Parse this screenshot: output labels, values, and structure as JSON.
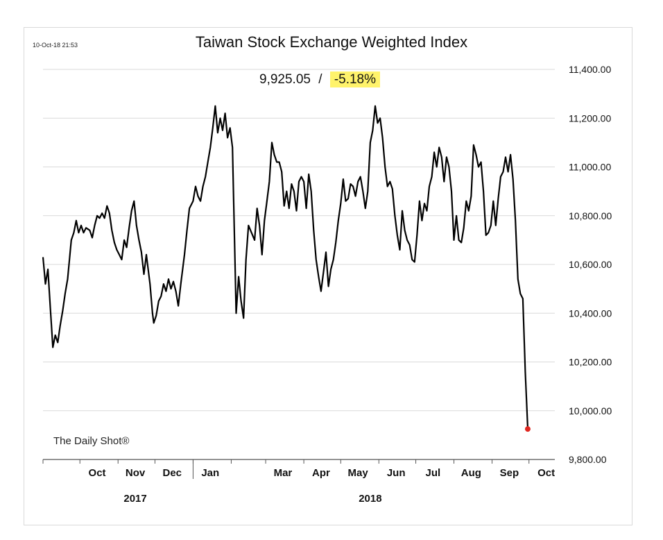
{
  "header": {
    "timestamp": "10-Oct-18 21:53",
    "title": "Taiwan Stock Exchange Weighted Index",
    "last_value": "9,925.05",
    "separator": "/",
    "change": "-5.18%",
    "highlight_color": "#fff36b"
  },
  "credit": "The Daily Shot®",
  "chart_data": {
    "type": "line",
    "title": "Taiwan Stock Exchange Weighted Index",
    "xlabel": "",
    "ylabel": "",
    "ylim": [
      9800,
      11400
    ],
    "grid": "horizontal",
    "line_color": "#000000",
    "last_point_color": "#e0261f",
    "y_ticks": [
      "11,400.00",
      "11,200.00",
      "11,000.00",
      "10,800.00",
      "10,600.00",
      "10,400.00",
      "10,200.00",
      "10,000.00",
      "9,800.00"
    ],
    "y_tick_values": [
      11400,
      11200,
      11000,
      10800,
      10600,
      10400,
      10200,
      10000,
      9800
    ],
    "x_ticks": [
      "Oct",
      "Nov",
      "Dec",
      "Jan",
      "Mar",
      "Apr",
      "May",
      "Jun",
      "Jul",
      "Aug",
      "Sep",
      "Oct"
    ],
    "x_tick_dates": [
      "2017-10-15",
      "2017-11-15",
      "2017-12-15",
      "2018-01-15",
      "2018-03-15",
      "2018-04-15",
      "2018-05-15",
      "2018-06-15",
      "2018-07-15",
      "2018-08-15",
      "2018-09-15",
      "2018-10-15"
    ],
    "years": [
      {
        "label": "2017",
        "center_date": "2017-11-15"
      },
      {
        "label": "2018",
        "center_date": "2018-05-25"
      }
    ],
    "year_divider_date": "2018-01-01",
    "x_domain": [
      "2017-09-01",
      "2018-10-22"
    ],
    "series": [
      {
        "points": [
          [
            "2017-09-01",
            10630
          ],
          [
            "2017-09-03",
            10520
          ],
          [
            "2017-09-05",
            10580
          ],
          [
            "2017-09-07",
            10420
          ],
          [
            "2017-09-09",
            10260
          ],
          [
            "2017-09-11",
            10310
          ],
          [
            "2017-09-13",
            10280
          ],
          [
            "2017-09-15",
            10350
          ],
          [
            "2017-09-17",
            10410
          ],
          [
            "2017-09-19",
            10480
          ],
          [
            "2017-09-21",
            10540
          ],
          [
            "2017-09-24",
            10700
          ],
          [
            "2017-09-26",
            10730
          ],
          [
            "2017-09-28",
            10780
          ],
          [
            "2017-09-30",
            10730
          ],
          [
            "2017-10-02",
            10760
          ],
          [
            "2017-10-04",
            10730
          ],
          [
            "2017-10-06",
            10750
          ],
          [
            "2017-10-09",
            10740
          ],
          [
            "2017-10-11",
            10710
          ],
          [
            "2017-10-13",
            10760
          ],
          [
            "2017-10-15",
            10800
          ],
          [
            "2017-10-17",
            10790
          ],
          [
            "2017-10-19",
            10810
          ],
          [
            "2017-10-21",
            10790
          ],
          [
            "2017-10-23",
            10840
          ],
          [
            "2017-10-25",
            10810
          ],
          [
            "2017-10-27",
            10740
          ],
          [
            "2017-10-29",
            10690
          ],
          [
            "2017-10-31",
            10660
          ],
          [
            "2017-11-02",
            10640
          ],
          [
            "2017-11-04",
            10620
          ],
          [
            "2017-11-06",
            10700
          ],
          [
            "2017-11-08",
            10670
          ],
          [
            "2017-11-10",
            10750
          ],
          [
            "2017-11-12",
            10820
          ],
          [
            "2017-11-14",
            10860
          ],
          [
            "2017-11-16",
            10760
          ],
          [
            "2017-11-18",
            10700
          ],
          [
            "2017-11-20",
            10650
          ],
          [
            "2017-11-22",
            10560
          ],
          [
            "2017-11-24",
            10640
          ],
          [
            "2017-11-27",
            10520
          ],
          [
            "2017-11-29",
            10400
          ],
          [
            "2017-11-30",
            10360
          ],
          [
            "2017-12-02",
            10390
          ],
          [
            "2017-12-04",
            10450
          ],
          [
            "2017-12-06",
            10470
          ],
          [
            "2017-12-08",
            10520
          ],
          [
            "2017-12-10",
            10490
          ],
          [
            "2017-12-12",
            10540
          ],
          [
            "2017-12-14",
            10500
          ],
          [
            "2017-12-16",
            10530
          ],
          [
            "2017-12-18",
            10490
          ],
          [
            "2017-12-20",
            10430
          ],
          [
            "2017-12-22",
            10520
          ],
          [
            "2017-12-25",
            10640
          ],
          [
            "2017-12-27",
            10740
          ],
          [
            "2017-12-29",
            10830
          ],
          [
            "2018-01-01",
            10860
          ],
          [
            "2018-01-03",
            10920
          ],
          [
            "2018-01-05",
            10880
          ],
          [
            "2018-01-07",
            10860
          ],
          [
            "2018-01-09",
            10920
          ],
          [
            "2018-01-11",
            10960
          ],
          [
            "2018-01-13",
            11020
          ],
          [
            "2018-01-15",
            11080
          ],
          [
            "2018-01-17",
            11160
          ],
          [
            "2018-01-19",
            11250
          ],
          [
            "2018-01-21",
            11140
          ],
          [
            "2018-01-23",
            11200
          ],
          [
            "2018-01-25",
            11150
          ],
          [
            "2018-01-27",
            11220
          ],
          [
            "2018-01-29",
            11120
          ],
          [
            "2018-01-31",
            11160
          ],
          [
            "2018-02-02",
            11080
          ],
          [
            "2018-02-05",
            10400
          ],
          [
            "2018-02-07",
            10550
          ],
          [
            "2018-02-09",
            10450
          ],
          [
            "2018-02-11",
            10380
          ],
          [
            "2018-02-13",
            10620
          ],
          [
            "2018-02-15",
            10760
          ],
          [
            "2018-02-20",
            10700
          ],
          [
            "2018-02-22",
            10830
          ],
          [
            "2018-02-24",
            10760
          ],
          [
            "2018-02-26",
            10640
          ],
          [
            "2018-02-28",
            10780
          ],
          [
            "2018-03-02",
            10860
          ],
          [
            "2018-03-04",
            10940
          ],
          [
            "2018-03-06",
            11100
          ],
          [
            "2018-03-08",
            11050
          ],
          [
            "2018-03-10",
            11020
          ],
          [
            "2018-03-12",
            11020
          ],
          [
            "2018-03-14",
            10980
          ],
          [
            "2018-03-16",
            10840
          ],
          [
            "2018-03-18",
            10900
          ],
          [
            "2018-03-20",
            10830
          ],
          [
            "2018-03-22",
            10930
          ],
          [
            "2018-03-24",
            10900
          ],
          [
            "2018-03-26",
            10820
          ],
          [
            "2018-03-28",
            10940
          ],
          [
            "2018-03-30",
            10960
          ],
          [
            "2018-04-01",
            10940
          ],
          [
            "2018-04-03",
            10830
          ],
          [
            "2018-04-05",
            10970
          ],
          [
            "2018-04-07",
            10900
          ],
          [
            "2018-04-09",
            10740
          ],
          [
            "2018-04-11",
            10620
          ],
          [
            "2018-04-13",
            10550
          ],
          [
            "2018-04-15",
            10490
          ],
          [
            "2018-04-17",
            10570
          ],
          [
            "2018-04-19",
            10650
          ],
          [
            "2018-04-21",
            10510
          ],
          [
            "2018-04-23",
            10580
          ],
          [
            "2018-04-25",
            10620
          ],
          [
            "2018-04-27",
            10690
          ],
          [
            "2018-04-29",
            10780
          ],
          [
            "2018-05-01",
            10850
          ],
          [
            "2018-05-03",
            10950
          ],
          [
            "2018-05-05",
            10860
          ],
          [
            "2018-05-07",
            10870
          ],
          [
            "2018-05-09",
            10930
          ],
          [
            "2018-05-11",
            10920
          ],
          [
            "2018-05-13",
            10880
          ],
          [
            "2018-05-15",
            10940
          ],
          [
            "2018-05-17",
            10960
          ],
          [
            "2018-05-19",
            10900
          ],
          [
            "2018-05-21",
            10830
          ],
          [
            "2018-05-23",
            10900
          ],
          [
            "2018-05-25",
            11100
          ],
          [
            "2018-05-27",
            11150
          ],
          [
            "2018-05-29",
            11250
          ],
          [
            "2018-05-31",
            11180
          ],
          [
            "2018-06-02",
            11200
          ],
          [
            "2018-06-04",
            11120
          ],
          [
            "2018-06-06",
            11000
          ],
          [
            "2018-06-08",
            10920
          ],
          [
            "2018-06-10",
            10940
          ],
          [
            "2018-06-12",
            10910
          ],
          [
            "2018-06-14",
            10800
          ],
          [
            "2018-06-16",
            10720
          ],
          [
            "2018-06-18",
            10660
          ],
          [
            "2018-06-20",
            10820
          ],
          [
            "2018-06-22",
            10740
          ],
          [
            "2018-06-24",
            10700
          ],
          [
            "2018-06-26",
            10680
          ],
          [
            "2018-06-28",
            10620
          ],
          [
            "2018-06-30",
            10610
          ],
          [
            "2018-07-02",
            10720
          ],
          [
            "2018-07-04",
            10860
          ],
          [
            "2018-07-06",
            10780
          ],
          [
            "2018-07-08",
            10850
          ],
          [
            "2018-07-10",
            10820
          ],
          [
            "2018-07-12",
            10920
          ],
          [
            "2018-07-14",
            10960
          ],
          [
            "2018-07-16",
            11060
          ],
          [
            "2018-07-18",
            11000
          ],
          [
            "2018-07-20",
            11080
          ],
          [
            "2018-07-22",
            11040
          ],
          [
            "2018-07-24",
            10940
          ],
          [
            "2018-07-26",
            11040
          ],
          [
            "2018-07-28",
            11000
          ],
          [
            "2018-07-30",
            10900
          ],
          [
            "2018-08-01",
            10700
          ],
          [
            "2018-08-03",
            10800
          ],
          [
            "2018-08-05",
            10700
          ],
          [
            "2018-08-07",
            10690
          ],
          [
            "2018-08-09",
            10750
          ],
          [
            "2018-08-11",
            10860
          ],
          [
            "2018-08-13",
            10820
          ],
          [
            "2018-08-15",
            10880
          ],
          [
            "2018-08-17",
            11090
          ],
          [
            "2018-08-19",
            11050
          ],
          [
            "2018-08-21",
            11000
          ],
          [
            "2018-08-23",
            11020
          ],
          [
            "2018-08-25",
            10900
          ],
          [
            "2018-08-27",
            10720
          ],
          [
            "2018-08-29",
            10730
          ],
          [
            "2018-08-31",
            10760
          ],
          [
            "2018-09-02",
            10860
          ],
          [
            "2018-09-04",
            10760
          ],
          [
            "2018-09-06",
            10870
          ],
          [
            "2018-09-08",
            10960
          ],
          [
            "2018-09-10",
            10980
          ],
          [
            "2018-09-12",
            11040
          ],
          [
            "2018-09-14",
            10980
          ],
          [
            "2018-09-16",
            11050
          ],
          [
            "2018-09-18",
            10950
          ],
          [
            "2018-09-20",
            10780
          ],
          [
            "2018-09-22",
            10540
          ],
          [
            "2018-09-24",
            10480
          ],
          [
            "2018-09-26",
            10460
          ],
          [
            "2018-09-28",
            10160
          ],
          [
            "2018-09-30",
            9925.05
          ]
        ]
      }
    ],
    "last_point": {
      "date": "2018-09-30",
      "value": 9925.05
    }
  }
}
